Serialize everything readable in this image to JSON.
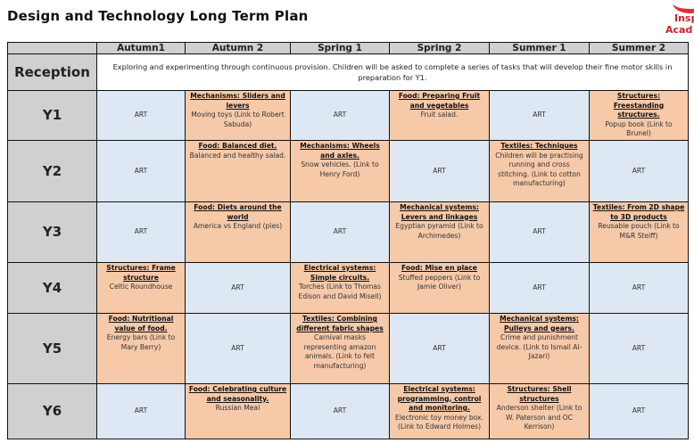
{
  "title": "Design and Technology Long Term Plan",
  "logo_text": [
    "Insp",
    "Acad"
  ],
  "colors": {
    "label_bg": "#d0cfd1",
    "art_bg": "#dde8f4",
    "topic_bg": "#f6c9a9"
  },
  "columns": [
    "",
    "Autumn1",
    "Autumn 2",
    "Spring 1",
    "Spring 2",
    "Summer 1",
    "Summer 2"
  ],
  "reception": {
    "label": "Reception",
    "text": "Exploring and experimenting through continuous provision. Children will be asked to complete a series of tasks that will develop their fine motor skills in preparation for Y1."
  },
  "rows": [
    {
      "label": "Y1",
      "cells": [
        {
          "type": "art",
          "body": "ART"
        },
        {
          "type": "topic",
          "heading": "Mechanisms: Sliders and levers",
          "body": "Moving toys (Link to Robert Sabuda)"
        },
        {
          "type": "art",
          "body": "ART"
        },
        {
          "type": "topic",
          "heading": "Food: Preparing Fruit and vegetables",
          "body": "Fruit salad."
        },
        {
          "type": "art",
          "body": "ART"
        },
        {
          "type": "topic",
          "heading": "Structures: Freestanding structures.",
          "body": "Popup book (Link to Brunel)"
        }
      ]
    },
    {
      "label": "Y2",
      "cells": [
        {
          "type": "art",
          "body": "ART"
        },
        {
          "type": "topic",
          "heading": "Food: Balanced diet.",
          "body": "Balanced and healthy salad."
        },
        {
          "type": "topic",
          "heading": "Mechanisms: Wheels and axles.",
          "body": "Snow vehicles. (Link to Henry Ford)"
        },
        {
          "type": "art",
          "body": "ART"
        },
        {
          "type": "topic",
          "heading": "Textiles: Techniques",
          "body": "Children will be practising running and cross stitching. (Link to cotton manufacturing)"
        },
        {
          "type": "art",
          "body": "ART"
        }
      ]
    },
    {
      "label": "Y3",
      "cells": [
        {
          "type": "art",
          "body": "ART"
        },
        {
          "type": "topic",
          "heading": "Food: Diets around the world",
          "body": "America vs England (pies)"
        },
        {
          "type": "art",
          "body": "ART"
        },
        {
          "type": "topic",
          "heading": "Mechanical systems: Levers and linkages",
          "body": "Egyptian pyramid (Link to Archimedes)"
        },
        {
          "type": "art",
          "body": "ART"
        },
        {
          "type": "topic",
          "heading": "Textiles: From 2D shape to 3D products",
          "body": "Reusable pouch (Link to M&R Steiff)"
        }
      ]
    },
    {
      "label": "Y4",
      "cells": [
        {
          "type": "topic",
          "heading": "Structures: Frame structure",
          "body": "Celtic Roundhouse"
        },
        {
          "type": "art",
          "body": "ART"
        },
        {
          "type": "topic",
          "heading": "Electrical systems: Simple circuits.",
          "body": "Torches (Link to Thomas Edison and David Misell)"
        },
        {
          "type": "topic",
          "heading": "Food: Mise en place",
          "body": "Stuffed peppers (Link to Jamie Oliver)"
        },
        {
          "type": "art",
          "body": "ART"
        },
        {
          "type": "art",
          "body": "ART"
        }
      ]
    },
    {
      "label": "Y5",
      "cells": [
        {
          "type": "topic",
          "heading": "Food: Nutritional value of food.",
          "body": "Energy bars (Link to Mary Berry)"
        },
        {
          "type": "art",
          "body": "ART"
        },
        {
          "type": "topic",
          "heading": "Textiles: Combining different fabric shapes",
          "body": "Carnival masks representing amazon animals. (Link to felt manufacturing)"
        },
        {
          "type": "art",
          "body": "ART"
        },
        {
          "type": "topic",
          "heading": "Mechanical systems: Pulleys and gears.",
          "body": "Crime and punishment device. (Link to Ismail Al-Jazari)"
        },
        {
          "type": "art",
          "body": "ART"
        }
      ]
    },
    {
      "label": "Y6",
      "cells": [
        {
          "type": "art",
          "body": "ART"
        },
        {
          "type": "topic",
          "heading": "Food: Celebrating culture and seasonality.",
          "body": "Russian Meal"
        },
        {
          "type": "art",
          "body": "ART"
        },
        {
          "type": "topic",
          "heading": "Electrical systems: programming, control and monitoring.",
          "body": "Electronic toy money box. (Link to Edward Holmes)"
        },
        {
          "type": "topic",
          "heading": "Structures: Shell structures",
          "body": "Anderson shelter (Link to W. Paterson and OC Kerrison)"
        },
        {
          "type": "art",
          "body": "ART"
        }
      ]
    }
  ]
}
